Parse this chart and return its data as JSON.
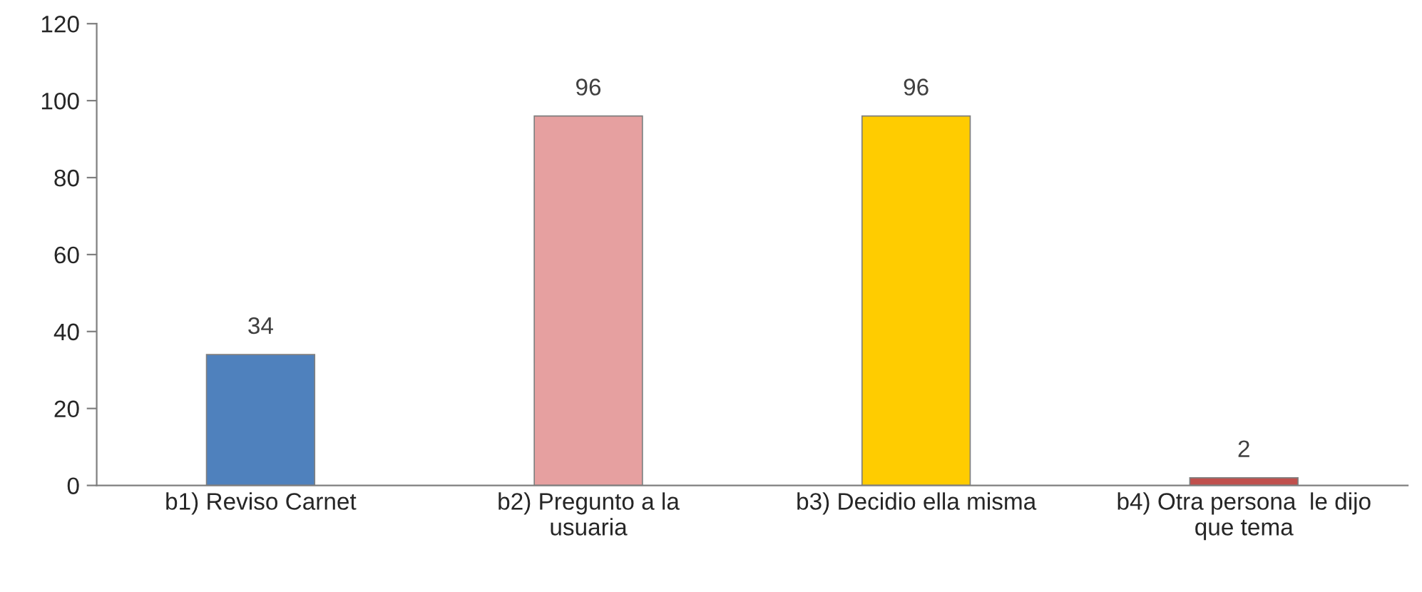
{
  "chart_data": {
    "type": "bar",
    "categories": [
      "b1) Reviso Carnet",
      "b2) Pregunto a la\nusuaria",
      "b3) Decidio ella misma",
      "b4) Otra persona  le dijo\nque tema"
    ],
    "values": [
      34,
      96,
      96,
      2
    ],
    "colors": [
      "#4f81bd",
      "#e6a0a0",
      "#ffcc00",
      "#c0504d"
    ],
    "ylim": [
      0,
      120
    ],
    "yticks": [
      0,
      20,
      40,
      60,
      80,
      100,
      120
    ],
    "data_labels": true,
    "grid": false,
    "legend": false
  }
}
